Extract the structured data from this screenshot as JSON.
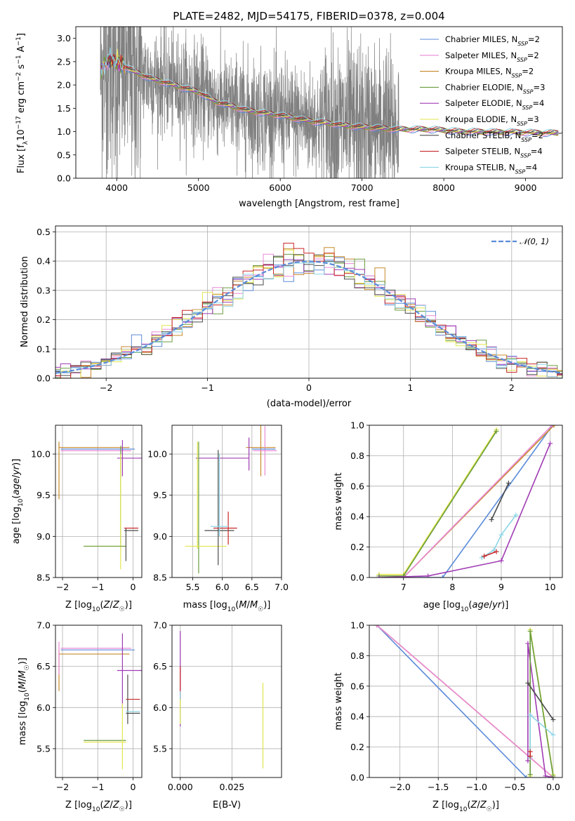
{
  "figure": {
    "title": "PLATE=2482, MJD=54175, FIBERID=0378, z=0.004"
  },
  "models": [
    {
      "name": "Chabrier MILES, N_SSP=2",
      "color": "#5b8bd9"
    },
    {
      "name": "Salpeter MILES, N_SSP=2",
      "color": "#e98ad7"
    },
    {
      "name": "Kroupa MILES, N_SSP=2",
      "color": "#c8892c"
    },
    {
      "name": "Chabrier ELODIE, N_SSP=3",
      "color": "#6a9c3e"
    },
    {
      "name": "Salpeter ELODIE, N_SSP=4",
      "color": "#a03cb4"
    },
    {
      "name": "Kroupa ELODIE, N_SSP=3",
      "color": "#e3e64e"
    },
    {
      "name": "Chabrier STELIB, N_SSP=2",
      "color": "#4a4a4a"
    },
    {
      "name": "Salpeter STELIB, N_SSP=4",
      "color": "#c8282a"
    },
    {
      "name": "Kroupa STELIB, N_SSP=4",
      "color": "#8dd6e6"
    }
  ],
  "chart_data": [
    {
      "id": "spectrum",
      "type": "line",
      "xlabel": "wavelength [Angstrom, rest frame]",
      "ylabel": "Flux [f_λ 10^-17 erg cm^-2 s^-1 A^-1]",
      "xlim": [
        3500,
        9450
      ],
      "ylim": [
        0,
        3.25
      ],
      "xticks": [
        4000,
        5000,
        6000,
        7000,
        8000,
        9000
      ],
      "yticks": [
        0.0,
        0.5,
        1.0,
        1.5,
        2.0,
        2.5,
        3.0
      ],
      "data_color": "#808080",
      "grid": false,
      "legend": "upper right",
      "model_continuum": {
        "x": [
          3800,
          3900,
          4000,
          4200,
          4400,
          4600,
          4800,
          5000,
          5200,
          5400,
          5600,
          5800,
          6000,
          6200,
          6400,
          6600,
          6800,
          7000,
          7200,
          7400,
          7600,
          7800,
          8000,
          8200,
          8400,
          8600,
          8800,
          9000,
          9200,
          9400
        ],
        "y": [
          2.3,
          2.55,
          2.5,
          2.3,
          2.15,
          2.05,
          1.95,
          1.85,
          1.65,
          1.55,
          1.45,
          1.4,
          1.35,
          1.28,
          1.22,
          1.18,
          1.13,
          1.1,
          1.08,
          1.05,
          1.05,
          1.05,
          1.03,
          1.0,
          1.0,
          0.99,
          0.99,
          0.98,
          0.97,
          0.97
        ]
      }
    },
    {
      "id": "residuals",
      "type": "step",
      "xlabel": "(data-model)/error",
      "ylabel": "Normed distribution",
      "xlim": [
        -2.5,
        2.5
      ],
      "ylim": [
        0,
        0.52
      ],
      "xticks": [
        -2,
        -1,
        0,
        1,
        2
      ],
      "yticks": [
        0.0,
        0.1,
        0.2,
        0.3,
        0.4,
        0.5
      ],
      "grid": true,
      "legend": "upper right",
      "reference_label": "𝒩(0, 1)",
      "reference_color": "#5b8bd9",
      "bin_width": 0.1,
      "bins_start": -2.55
    },
    {
      "id": "age-vs-Z",
      "type": "errorbar",
      "xlabel": "Z [log10(Z/Z☉)]",
      "ylabel": "age  [log10(age/yr)]",
      "xlim": [
        -2.2,
        0.25
      ],
      "ylim": [
        8.5,
        10.35
      ],
      "xticks": [
        -2,
        -1,
        0
      ],
      "yticks": [
        8.5,
        9.0,
        9.5,
        10.0
      ],
      "grid": true,
      "points": [
        {
          "model": 2,
          "x": -1.1,
          "xerr": 1.0,
          "y": 10.08,
          "yerr": 0.0
        },
        {
          "model": 2,
          "x": -2.1,
          "xerr": 0.0,
          "y": 9.8,
          "yerr": 0.35
        },
        {
          "model": 1,
          "x": -1.05,
          "xerr": 1.0,
          "y": 10.04,
          "yerr": 0.0
        },
        {
          "model": 0,
          "x": -1.0,
          "xerr": 1.05,
          "y": 10.06,
          "yerr": 0.0
        },
        {
          "model": 4,
          "x": -0.1,
          "xerr": 0.35,
          "y": 9.95,
          "yerr": 0.0
        },
        {
          "model": 4,
          "x": -0.3,
          "xerr": 0.0,
          "y": 9.95,
          "yerr": 0.22
        },
        {
          "model": 3,
          "x": -0.35,
          "xerr": 0.0,
          "y": 9.5,
          "yerr": 0.6
        },
        {
          "model": 5,
          "x": -0.35,
          "xerr": 0.0,
          "y": 9.3,
          "yerr": 0.7
        },
        {
          "model": 5,
          "x": -0.8,
          "xerr": 0.6,
          "y": 8.88,
          "yerr": 0.0
        },
        {
          "model": 3,
          "x": -0.8,
          "xerr": 0.6,
          "y": 8.88,
          "yerr": 0.0
        },
        {
          "model": 6,
          "x": -0.05,
          "xerr": 0.2,
          "y": 9.07,
          "yerr": 0.0
        },
        {
          "model": 6,
          "x": -0.2,
          "xerr": 0.0,
          "y": 8.9,
          "yerr": 0.2
        },
        {
          "model": 7,
          "x": -0.05,
          "xerr": 0.2,
          "y": 9.1,
          "yerr": 0.0
        }
      ]
    },
    {
      "id": "age-vs-mass",
      "type": "errorbar",
      "xlabel": "mass [log10(M/M☉)]",
      "ylabel": "",
      "xlim": [
        5.15,
        7.0
      ],
      "ylim": [
        8.5,
        10.35
      ],
      "xticks": [
        5.5,
        6.0,
        6.5,
        7.0
      ],
      "yticks": [
        8.5,
        9.0,
        9.5,
        10.0
      ],
      "grid": true,
      "points": [
        {
          "model": 2,
          "x": 6.65,
          "xerr": 0.0,
          "y": 10.08,
          "yerr": 0.35
        },
        {
          "model": 2,
          "x": 6.65,
          "xerr": 0.25,
          "y": 10.08,
          "yerr": 0.0
        },
        {
          "model": 1,
          "x": 6.72,
          "xerr": 0.2,
          "y": 10.04,
          "yerr": 0.3
        },
        {
          "model": 0,
          "x": 6.7,
          "xerr": 0.2,
          "y": 10.06,
          "yerr": 0.0
        },
        {
          "model": 4,
          "x": 6.45,
          "xerr": 0.0,
          "y": 10.0,
          "yerr": 0.2
        },
        {
          "model": 4,
          "x": 6.0,
          "xerr": 0.45,
          "y": 9.95,
          "yerr": 0.0
        },
        {
          "model": 3,
          "x": 5.6,
          "xerr": 0.0,
          "y": 9.35,
          "yerr": 0.8
        },
        {
          "model": 5,
          "x": 5.58,
          "xerr": 0.0,
          "y": 9.5,
          "yerr": 0.65
        },
        {
          "model": 5,
          "x": 5.72,
          "xerr": 0.35,
          "y": 8.88,
          "yerr": 0.0
        },
        {
          "model": 6,
          "x": 5.93,
          "xerr": 0.0,
          "y": 9.35,
          "yerr": 0.7
        },
        {
          "model": 6,
          "x": 5.95,
          "xerr": 0.25,
          "y": 9.07,
          "yerr": 0.0
        },
        {
          "model": 7,
          "x": 6.1,
          "xerr": 0.0,
          "y": 9.1,
          "yerr": 0.2
        },
        {
          "model": 7,
          "x": 6.05,
          "xerr": 0.2,
          "y": 9.1,
          "yerr": 0.0
        },
        {
          "model": 8,
          "x": 5.95,
          "xerr": 0.0,
          "y": 9.5,
          "yerr": 0.5
        },
        {
          "model": 8,
          "x": 5.95,
          "xerr": 0.15,
          "y": 9.12,
          "yerr": 0.0
        }
      ]
    },
    {
      "id": "massweight-vs-age",
      "type": "line",
      "xlabel": "age  [log10(age/yr)]",
      "ylabel": "mass weight",
      "xlim": [
        6.3,
        10.25
      ],
      "ylim": [
        0,
        1.0
      ],
      "xticks": [
        7,
        8,
        9,
        10
      ],
      "yticks": [
        0.0,
        0.2,
        0.4,
        0.6,
        0.8,
        1.0
      ],
      "grid": true,
      "series": [
        {
          "model": 0,
          "x": [
            7.0,
            7.8,
            10.05
          ],
          "y": [
            0.0,
            0.0,
            1.0
          ]
        },
        {
          "model": 2,
          "x": [
            7.0,
            10.08
          ],
          "y": [
            0.0,
            1.0
          ]
        },
        {
          "model": 1,
          "x": [
            7.0,
            10.04
          ],
          "y": [
            0.0,
            1.0
          ]
        },
        {
          "model": 5,
          "x": [
            6.5,
            7.0,
            8.9
          ],
          "y": [
            0.02,
            0.02,
            0.97
          ]
        },
        {
          "model": 3,
          "x": [
            6.5,
            7.0,
            8.9
          ],
          "y": [
            0.01,
            0.01,
            0.96
          ]
        },
        {
          "model": 4,
          "x": [
            6.5,
            7.5,
            9.0,
            10.0
          ],
          "y": [
            0.0,
            0.01,
            0.11,
            0.88
          ]
        },
        {
          "model": 6,
          "x": [
            8.8,
            9.15
          ],
          "y": [
            0.38,
            0.62
          ]
        },
        {
          "model": 8,
          "x": [
            8.6,
            8.85,
            9.0,
            9.3
          ],
          "y": [
            0.13,
            0.18,
            0.28,
            0.41
          ]
        },
        {
          "model": 7,
          "x": [
            8.65,
            8.9
          ],
          "y": [
            0.14,
            0.17
          ]
        }
      ]
    },
    {
      "id": "mass-vs-Z",
      "type": "errorbar",
      "xlabel": "Z [log10(Z/Z☉)]",
      "ylabel": "mass [log10(M/M☉)]",
      "xlim": [
        -2.2,
        0.25
      ],
      "ylim": [
        5.15,
        7.0
      ],
      "xticks": [
        -2,
        -1,
        0
      ],
      "yticks": [
        5.5,
        6.0,
        6.5,
        7.0
      ],
      "grid": true,
      "points": [
        {
          "model": 2,
          "x": -1.1,
          "xerr": 1.0,
          "y": 6.65,
          "yerr": 0.0
        },
        {
          "model": 2,
          "x": -2.1,
          "xerr": 0.0,
          "y": 6.45,
          "yerr": 0.25
        },
        {
          "model": 1,
          "x": -1.05,
          "xerr": 1.0,
          "y": 6.72,
          "yerr": 0.0
        },
        {
          "model": 1,
          "x": -2.1,
          "xerr": 0.0,
          "y": 6.6,
          "yerr": 0.2
        },
        {
          "model": 0,
          "x": -1.0,
          "xerr": 1.05,
          "y": 6.7,
          "yerr": 0.0
        },
        {
          "model": 4,
          "x": -0.1,
          "xerr": 0.35,
          "y": 6.45,
          "yerr": 0.0
        },
        {
          "model": 4,
          "x": -0.3,
          "xerr": 0.0,
          "y": 6.45,
          "yerr": 0.45
        },
        {
          "model": 3,
          "x": -0.8,
          "xerr": 0.6,
          "y": 5.6,
          "yerr": 0.0
        },
        {
          "model": 5,
          "x": -0.8,
          "xerr": 0.6,
          "y": 5.58,
          "yerr": 0.0
        },
        {
          "model": 5,
          "x": -0.3,
          "xerr": 0.0,
          "y": 5.65,
          "yerr": 0.4
        },
        {
          "model": 7,
          "x": 0.0,
          "xerr": 0.2,
          "y": 6.1,
          "yerr": 0.0
        },
        {
          "model": 6,
          "x": -0.15,
          "xerr": 0.0,
          "y": 6.1,
          "yerr": 0.3
        },
        {
          "model": 8,
          "x": 0.0,
          "xerr": 0.2,
          "y": 5.95,
          "yerr": 0.0
        },
        {
          "model": 6,
          "x": 0.0,
          "xerr": 0.2,
          "y": 5.93,
          "yerr": 0.0
        }
      ]
    },
    {
      "id": "mass-vs-ebv",
      "type": "errorbar",
      "xlabel": "E(B-V)",
      "ylabel": "",
      "xlim": [
        -0.004,
        0.049
      ],
      "ylim": [
        5.15,
        7.0
      ],
      "xticks": [
        0.0,
        0.025
      ],
      "xticklabels": [
        "0.000",
        "0.025"
      ],
      "yticks": [
        5.5,
        6.0,
        6.5,
        7.0
      ],
      "grid": true,
      "points": [
        {
          "model": 4,
          "x": 0.0,
          "xerr": 0.0,
          "y": 6.35,
          "yerr": 0.58
        },
        {
          "model": 7,
          "x": 0.0,
          "xerr": 0.0,
          "y": 6.2,
          "yerr": 0.3
        },
        {
          "model": 8,
          "x": 0.0,
          "xerr": 0.0,
          "y": 6.0,
          "yerr": 0.2
        },
        {
          "model": 5,
          "x": 0.0,
          "xerr": 0.0,
          "y": 5.95,
          "yerr": 0.15
        },
        {
          "model": 5,
          "x": 0.04,
          "xerr": 0.0,
          "y": 5.78,
          "yerr": 0.52
        }
      ]
    },
    {
      "id": "massweight-vs-Z",
      "type": "line",
      "xlabel": "Z [log10(Z/Z☉)]",
      "ylabel": "mass weight",
      "xlim": [
        -2.4,
        0.12
      ],
      "ylim": [
        0,
        1.0
      ],
      "xticks": [
        -2.0,
        -1.5,
        -1.0,
        -0.5,
        0.0
      ],
      "yticks": [
        0.0,
        0.2,
        0.4,
        0.6,
        0.8,
        1.0
      ],
      "grid": true,
      "series": [
        {
          "model": 0,
          "x": [
            -2.3,
            -0.35
          ],
          "y": [
            1.0,
            0.0
          ]
        },
        {
          "model": 2,
          "x": [
            -2.3,
            0.0
          ],
          "y": [
            1.0,
            0.0
          ]
        },
        {
          "model": 1,
          "x": [
            -2.3,
            0.0
          ],
          "y": [
            1.0,
            0.0
          ]
        },
        {
          "model": 4,
          "x": [
            -0.33,
            -0.33,
            -0.1,
            0.0
          ],
          "y": [
            0.11,
            0.88,
            0.01,
            0.0
          ]
        },
        {
          "model": 5,
          "x": [
            -0.3,
            -0.3,
            0.0
          ],
          "y": [
            0.01,
            0.97,
            0.02
          ]
        },
        {
          "model": 3,
          "x": [
            -0.3,
            -0.3,
            0.0
          ],
          "y": [
            0.02,
            0.96,
            0.01
          ]
        },
        {
          "model": 6,
          "x": [
            -0.33,
            0.0
          ],
          "y": [
            0.62,
            0.38
          ]
        },
        {
          "model": 8,
          "x": [
            -0.3,
            -0.3,
            0.0
          ],
          "y": [
            0.13,
            0.41,
            0.28
          ]
        },
        {
          "model": 7,
          "x": [
            -0.3,
            -0.3
          ],
          "y": [
            0.14,
            0.17
          ]
        }
      ]
    }
  ]
}
